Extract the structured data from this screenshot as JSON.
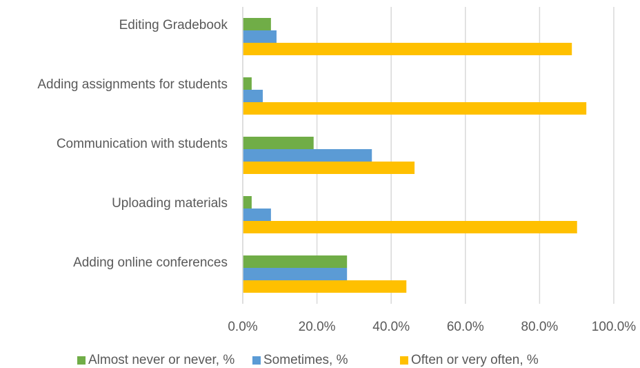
{
  "chart_data": {
    "type": "bar",
    "orientation": "horizontal",
    "categories": [
      "Editing Gradebook",
      "Adding assignments for students",
      "Communication with students",
      "Uploading materials",
      "Adding online conferences"
    ],
    "series": [
      {
        "name": "Almost never or never, %",
        "color": "#70ad47",
        "values": [
          7.6,
          2.4,
          19.1,
          2.4,
          28.1
        ]
      },
      {
        "name": "Sometimes, %",
        "color": "#5b9bd5",
        "values": [
          9.1,
          5.4,
          34.8,
          7.6,
          28.1
        ]
      },
      {
        "name": "Often or very often, %",
        "color": "#ffc000",
        "values": [
          88.7,
          92.6,
          46.3,
          90.1,
          44.1
        ]
      }
    ],
    "xlim": [
      0,
      100
    ],
    "xticks": [
      {
        "value": 0,
        "label": "0.0%"
      },
      {
        "value": 20,
        "label": "20.0%"
      },
      {
        "value": 40,
        "label": "40.0%"
      },
      {
        "value": 60,
        "label": "60.0%"
      },
      {
        "value": 80,
        "label": "80.0%"
      },
      {
        "value": 100,
        "label": "100.0%"
      }
    ],
    "grid": true,
    "legend": "bottom"
  }
}
